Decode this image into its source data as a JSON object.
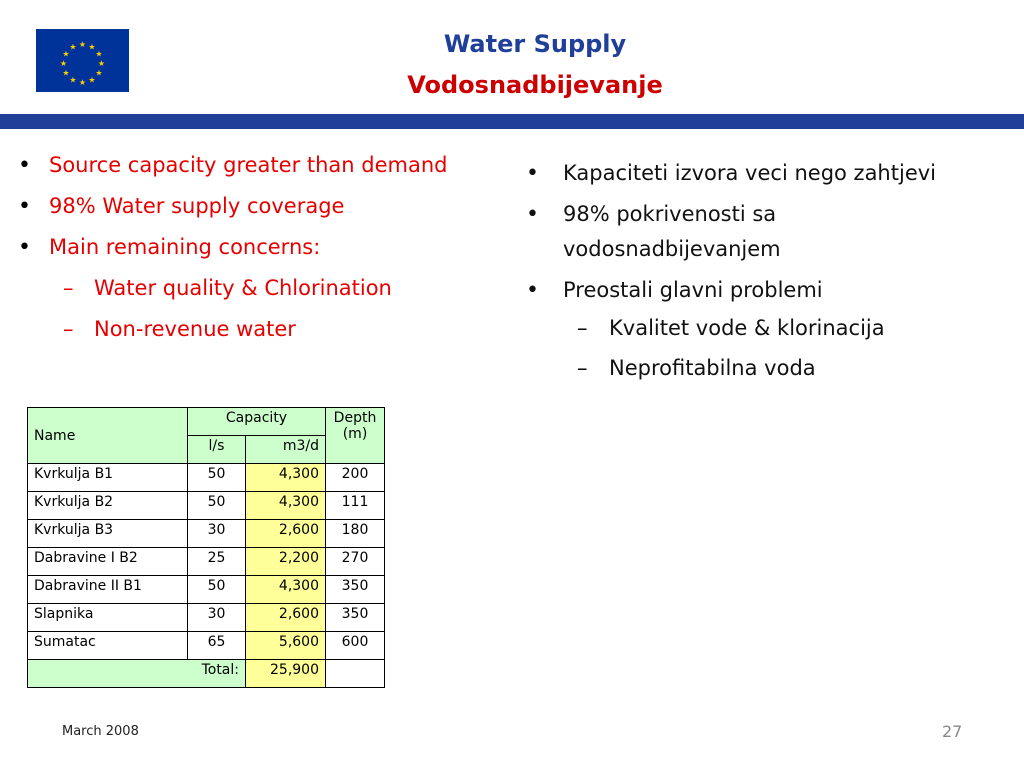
{
  "header": {
    "flag_icon": "eu-flag-icon",
    "title_en": "Water Supply",
    "title_local": "Vodosnadbijevanje",
    "colors": {
      "title_en": "#1f3f99",
      "title_local": "#cc0000",
      "rule": "#1f3f99",
      "flag": "#003399",
      "flag_stars": "#ffcc00"
    }
  },
  "left_bullets": [
    "Source capacity greater than demand",
    "98% Water supply coverage",
    "Main remaining concerns:"
  ],
  "left_sub_bullets": [
    "Water quality & Chlorination",
    "Non-revenue water"
  ],
  "right_bullets": [
    "Kapaciteti izvora veci nego zahtjevi",
    "98% pokrivenosti sa vodosnadbijevanjem",
    "Preostali glavni problemi"
  ],
  "right_sub_bullets": [
    "Kvalitet vode & klorinacija",
    "Neprofitabilna voda"
  ],
  "bullet_glyph": "•",
  "dash_glyph": "–",
  "table": {
    "headers": {
      "name": "Name",
      "capacity": "Capacity",
      "depth": "Depth (m)",
      "ls": "l/s",
      "m3d": "m3/d"
    },
    "rows": [
      {
        "name": "Kvrkulja B1",
        "ls": "50",
        "m3d": "4,300",
        "depth": "200"
      },
      {
        "name": "Kvrkulja B2",
        "ls": "50",
        "m3d": "4,300",
        "depth": "111"
      },
      {
        "name": "Kvrkulja B3",
        "ls": "30",
        "m3d": "2,600",
        "depth": "180"
      },
      {
        "name": "Dabravine I B2",
        "ls": "25",
        "m3d": "2,200",
        "depth": "270"
      },
      {
        "name": "Dabravine II B1",
        "ls": "50",
        "m3d": "4,300",
        "depth": "350"
      },
      {
        "name": "Slapnika",
        "ls": "30",
        "m3d": "2,600",
        "depth": "350"
      },
      {
        "name": "Sumatac",
        "ls": "65",
        "m3d": "5,600",
        "depth": "600"
      }
    ],
    "total_label": "Total:",
    "total_value": "25,900",
    "colors": {
      "header": "#ccffcc",
      "m3d": "#ffff99"
    }
  },
  "footer": {
    "date": "March 2008",
    "page": "27"
  }
}
